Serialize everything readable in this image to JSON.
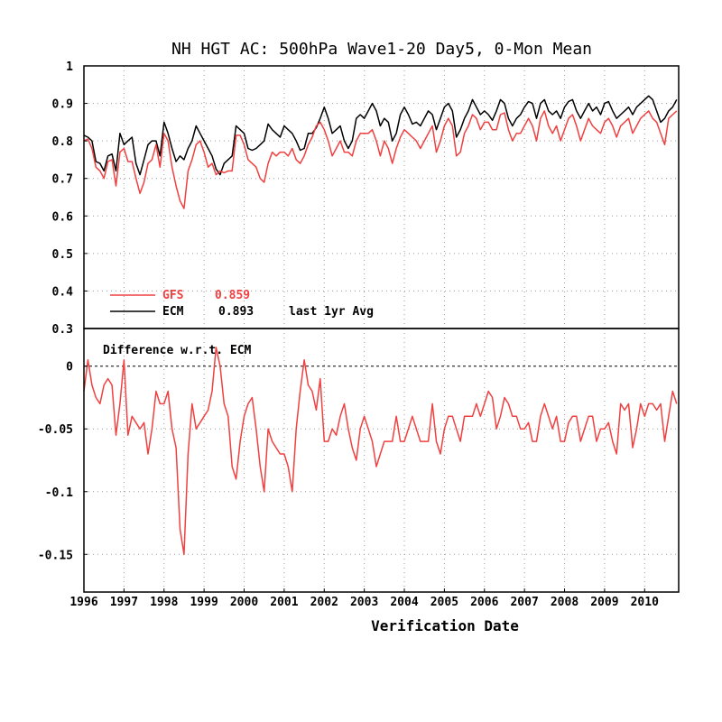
{
  "chart_data": [
    {
      "type": "line",
      "title": "NH HGT AC: 500hPa Wave1-20 Day5, 0-Mon Mean",
      "xlabel": "Verification Date",
      "xlim": [
        1996,
        2010.85
      ],
      "ylim": [
        0.3,
        1.0
      ],
      "yticks": [
        1,
        0.9,
        0.8,
        0.7,
        0.6,
        0.5,
        0.4,
        0.3
      ],
      "xticks": [
        "1996",
        "1997",
        "1998",
        "1999",
        "2000",
        "2001",
        "2002",
        "2003",
        "2004",
        "2005",
        "2006",
        "2007",
        "2008",
        "2009",
        "2010"
      ],
      "grid": true,
      "legend_position": "bottom-left",
      "legend": [
        {
          "name": "GFS",
          "value": "0.859",
          "color": "#f04040"
        },
        {
          "name": "ECM",
          "value": "0.893",
          "note": "last 1yr Avg",
          "color": "#000000"
        }
      ],
      "series": [
        {
          "name": "ECM",
          "color": "#000000",
          "x": [
            1996.0,
            1996.1,
            1996.2,
            1996.3,
            1996.4,
            1996.5,
            1996.6,
            1996.7,
            1996.8,
            1996.9,
            1997.0,
            1997.1,
            1997.2,
            1997.3,
            1997.4,
            1997.5,
            1997.6,
            1997.7,
            1997.8,
            1997.9,
            1998.0,
            1998.1,
            1998.2,
            1998.3,
            1998.4,
            1998.5,
            1998.6,
            1998.7,
            1998.8,
            1998.9,
            1999.0,
            1999.1,
            1999.2,
            1999.3,
            1999.4,
            1999.5,
            1999.6,
            1999.7,
            1999.8,
            1999.9,
            2000.0,
            2000.1,
            2000.2,
            2000.3,
            2000.4,
            2000.5,
            2000.6,
            2000.7,
            2000.8,
            2000.9,
            2001.0,
            2001.1,
            2001.2,
            2001.3,
            2001.4,
            2001.5,
            2001.6,
            2001.7,
            2001.8,
            2001.9,
            2002.0,
            2002.1,
            2002.2,
            2002.3,
            2002.4,
            2002.5,
            2002.6,
            2002.7,
            2002.8,
            2002.9,
            2003.0,
            2003.1,
            2003.2,
            2003.3,
            2003.4,
            2003.5,
            2003.6,
            2003.7,
            2003.8,
            2003.9,
            2004.0,
            2004.1,
            2004.2,
            2004.3,
            2004.4,
            2004.5,
            2004.6,
            2004.7,
            2004.8,
            2004.9,
            2005.0,
            2005.1,
            2005.2,
            2005.3,
            2005.4,
            2005.5,
            2005.6,
            2005.7,
            2005.8,
            2005.9,
            2006.0,
            2006.1,
            2006.2,
            2006.3,
            2006.4,
            2006.5,
            2006.6,
            2006.7,
            2006.8,
            2006.9,
            2007.0,
            2007.1,
            2007.2,
            2007.3,
            2007.4,
            2007.5,
            2007.6,
            2007.7,
            2007.8,
            2007.9,
            2008.0,
            2008.1,
            2008.2,
            2008.3,
            2008.4,
            2008.5,
            2008.6,
            2008.7,
            2008.8,
            2008.9,
            2009.0,
            2009.1,
            2009.2,
            2009.3,
            2009.4,
            2009.5,
            2009.6,
            2009.7,
            2009.8,
            2009.9,
            2010.0,
            2010.1,
            2010.2,
            2010.3,
            2010.4,
            2010.5,
            2010.6,
            2010.7,
            2010.8
          ],
          "values": [
            0.815,
            0.81,
            0.8,
            0.745,
            0.74,
            0.72,
            0.76,
            0.765,
            0.72,
            0.82,
            0.79,
            0.8,
            0.81,
            0.74,
            0.71,
            0.75,
            0.79,
            0.8,
            0.8,
            0.76,
            0.85,
            0.82,
            0.78,
            0.745,
            0.76,
            0.75,
            0.78,
            0.8,
            0.84,
            0.82,
            0.8,
            0.78,
            0.76,
            0.725,
            0.71,
            0.74,
            0.75,
            0.76,
            0.84,
            0.83,
            0.82,
            0.78,
            0.775,
            0.78,
            0.79,
            0.8,
            0.845,
            0.83,
            0.82,
            0.81,
            0.84,
            0.83,
            0.82,
            0.8,
            0.775,
            0.78,
            0.82,
            0.82,
            0.835,
            0.86,
            0.89,
            0.86,
            0.82,
            0.83,
            0.84,
            0.8,
            0.78,
            0.8,
            0.86,
            0.87,
            0.86,
            0.88,
            0.9,
            0.88,
            0.84,
            0.86,
            0.85,
            0.8,
            0.82,
            0.87,
            0.89,
            0.87,
            0.845,
            0.85,
            0.84,
            0.86,
            0.88,
            0.87,
            0.83,
            0.86,
            0.89,
            0.9,
            0.88,
            0.81,
            0.83,
            0.86,
            0.88,
            0.91,
            0.89,
            0.87,
            0.88,
            0.87,
            0.855,
            0.88,
            0.91,
            0.9,
            0.86,
            0.84,
            0.86,
            0.87,
            0.89,
            0.905,
            0.9,
            0.86,
            0.9,
            0.91,
            0.88,
            0.87,
            0.88,
            0.86,
            0.89,
            0.905,
            0.91,
            0.88,
            0.86,
            0.88,
            0.9,
            0.88,
            0.89,
            0.87,
            0.9,
            0.905,
            0.88,
            0.86,
            0.87,
            0.88,
            0.89,
            0.87,
            0.89,
            0.9,
            0.91,
            0.92,
            0.91,
            0.88,
            0.85,
            0.86,
            0.88,
            0.89,
            0.91
          ]
        },
        {
          "name": "GFS",
          "color": "#f04040",
          "x": [
            1996.0,
            1996.1,
            1996.2,
            1996.3,
            1996.4,
            1996.5,
            1996.6,
            1996.7,
            1996.8,
            1996.9,
            1997.0,
            1997.1,
            1997.2,
            1997.3,
            1997.4,
            1997.5,
            1997.6,
            1997.7,
            1997.8,
            1997.9,
            1998.0,
            1998.1,
            1998.2,
            1998.3,
            1998.4,
            1998.5,
            1998.6,
            1998.7,
            1998.8,
            1998.9,
            1999.0,
            1999.1,
            1999.2,
            1999.3,
            1999.4,
            1999.5,
            1999.6,
            1999.7,
            1999.8,
            1999.9,
            2000.0,
            2000.1,
            2000.2,
            2000.3,
            2000.4,
            2000.5,
            2000.6,
            2000.7,
            2000.8,
            2000.9,
            2001.0,
            2001.1,
            2001.2,
            2001.3,
            2001.4,
            2001.5,
            2001.6,
            2001.7,
            2001.8,
            2001.9,
            2002.0,
            2002.1,
            2002.2,
            2002.3,
            2002.4,
            2002.5,
            2002.6,
            2002.7,
            2002.8,
            2002.9,
            2003.0,
            2003.1,
            2003.2,
            2003.3,
            2003.4,
            2003.5,
            2003.6,
            2003.7,
            2003.8,
            2003.9,
            2004.0,
            2004.1,
            2004.2,
            2004.3,
            2004.4,
            2004.5,
            2004.6,
            2004.7,
            2004.8,
            2004.9,
            2005.0,
            2005.1,
            2005.2,
            2005.3,
            2005.4,
            2005.5,
            2005.6,
            2005.7,
            2005.8,
            2005.9,
            2006.0,
            2006.1,
            2006.2,
            2006.3,
            2006.4,
            2006.5,
            2006.6,
            2006.7,
            2006.8,
            2006.9,
            2007.0,
            2007.1,
            2007.2,
            2007.3,
            2007.4,
            2007.5,
            2007.6,
            2007.7,
            2007.8,
            2007.9,
            2008.0,
            2008.1,
            2008.2,
            2008.3,
            2008.4,
            2008.5,
            2008.6,
            2008.7,
            2008.8,
            2008.9,
            2009.0,
            2009.1,
            2009.2,
            2009.3,
            2009.4,
            2009.5,
            2009.6,
            2009.7,
            2009.8,
            2009.9,
            2010.0,
            2010.1,
            2010.2,
            2010.3,
            2010.4,
            2010.5,
            2010.6,
            2010.7,
            2010.8
          ],
          "values": [
            0.8,
            0.805,
            0.78,
            0.73,
            0.72,
            0.7,
            0.745,
            0.75,
            0.68,
            0.77,
            0.78,
            0.745,
            0.745,
            0.7,
            0.66,
            0.69,
            0.74,
            0.75,
            0.79,
            0.73,
            0.82,
            0.8,
            0.73,
            0.68,
            0.64,
            0.62,
            0.72,
            0.75,
            0.79,
            0.8,
            0.77,
            0.73,
            0.74,
            0.71,
            0.72,
            0.715,
            0.72,
            0.72,
            0.815,
            0.815,
            0.79,
            0.75,
            0.74,
            0.73,
            0.7,
            0.69,
            0.74,
            0.77,
            0.76,
            0.77,
            0.77,
            0.76,
            0.78,
            0.75,
            0.74,
            0.76,
            0.79,
            0.81,
            0.84,
            0.85,
            0.83,
            0.8,
            0.76,
            0.78,
            0.8,
            0.77,
            0.77,
            0.76,
            0.8,
            0.82,
            0.82,
            0.82,
            0.83,
            0.8,
            0.76,
            0.8,
            0.78,
            0.74,
            0.78,
            0.81,
            0.83,
            0.82,
            0.81,
            0.8,
            0.78,
            0.8,
            0.82,
            0.84,
            0.77,
            0.8,
            0.84,
            0.86,
            0.84,
            0.76,
            0.77,
            0.82,
            0.84,
            0.87,
            0.86,
            0.83,
            0.85,
            0.85,
            0.83,
            0.83,
            0.87,
            0.875,
            0.83,
            0.8,
            0.82,
            0.82,
            0.84,
            0.86,
            0.84,
            0.8,
            0.86,
            0.88,
            0.84,
            0.82,
            0.84,
            0.8,
            0.83,
            0.86,
            0.87,
            0.84,
            0.8,
            0.83,
            0.86,
            0.84,
            0.83,
            0.82,
            0.85,
            0.86,
            0.84,
            0.81,
            0.84,
            0.85,
            0.86,
            0.82,
            0.84,
            0.86,
            0.87,
            0.88,
            0.86,
            0.85,
            0.82,
            0.79,
            0.86,
            0.87,
            0.88
          ]
        }
      ]
    },
    {
      "type": "line",
      "title": "Difference w.r.t. ECM",
      "xlim": [
        1996,
        2010.85
      ],
      "ylim": [
        -0.18,
        0.03
      ],
      "yticks": [
        0,
        -0.05,
        -0.1,
        -0.15
      ],
      "reference_line": 0,
      "grid": true,
      "series": [
        {
          "color": "#f04040",
          "x": [
            1996.0,
            1996.1,
            1996.2,
            1996.3,
            1996.4,
            1996.5,
            1996.6,
            1996.7,
            1996.8,
            1996.9,
            1997.0,
            1997.1,
            1997.2,
            1997.3,
            1997.4,
            1997.5,
            1997.6,
            1997.7,
            1997.8,
            1997.9,
            1998.0,
            1998.1,
            1998.2,
            1998.3,
            1998.4,
            1998.5,
            1998.6,
            1998.7,
            1998.8,
            1998.9,
            1999.0,
            1999.1,
            1999.2,
            1999.3,
            1999.4,
            1999.5,
            1999.6,
            1999.7,
            1999.8,
            1999.9,
            2000.0,
            2000.1,
            2000.2,
            2000.3,
            2000.4,
            2000.5,
            2000.6,
            2000.7,
            2000.8,
            2000.9,
            2001.0,
            2001.1,
            2001.2,
            2001.3,
            2001.4,
            2001.5,
            2001.6,
            2001.7,
            2001.8,
            2001.9,
            2002.0,
            2002.1,
            2002.2,
            2002.3,
            2002.4,
            2002.5,
            2002.6,
            2002.7,
            2002.8,
            2002.9,
            2003.0,
            2003.1,
            2003.2,
            2003.3,
            2003.4,
            2003.5,
            2003.6,
            2003.7,
            2003.8,
            2003.9,
            2004.0,
            2004.1,
            2004.2,
            2004.3,
            2004.4,
            2004.5,
            2004.6,
            2004.7,
            2004.8,
            2004.9,
            2005.0,
            2005.1,
            2005.2,
            2005.3,
            2005.4,
            2005.5,
            2005.6,
            2005.7,
            2005.8,
            2005.9,
            2006.0,
            2006.1,
            2006.2,
            2006.3,
            2006.4,
            2006.5,
            2006.6,
            2006.7,
            2006.8,
            2006.9,
            2007.0,
            2007.1,
            2007.2,
            2007.3,
            2007.4,
            2007.5,
            2007.6,
            2007.7,
            2007.8,
            2007.9,
            2008.0,
            2008.1,
            2008.2,
            2008.3,
            2008.4,
            2008.5,
            2008.6,
            2008.7,
            2008.8,
            2008.9,
            2009.0,
            2009.1,
            2009.2,
            2009.3,
            2009.4,
            2009.5,
            2009.6,
            2009.7,
            2009.8,
            2009.9,
            2010.0,
            2010.1,
            2010.2,
            2010.3,
            2010.4,
            2010.5,
            2010.6,
            2010.7,
            2010.8
          ],
          "values": [
            -0.02,
            0.005,
            -0.015,
            -0.025,
            -0.03,
            -0.015,
            -0.01,
            -0.015,
            -0.055,
            -0.03,
            0.005,
            -0.055,
            -0.04,
            -0.045,
            -0.05,
            -0.045,
            -0.07,
            -0.05,
            -0.02,
            -0.03,
            -0.03,
            -0.02,
            -0.05,
            -0.065,
            -0.13,
            -0.15,
            -0.07,
            -0.03,
            -0.05,
            -0.045,
            -0.04,
            -0.035,
            -0.02,
            0.015,
            0.0,
            -0.03,
            -0.04,
            -0.08,
            -0.09,
            -0.06,
            -0.04,
            -0.03,
            -0.025,
            -0.05,
            -0.08,
            -0.1,
            -0.05,
            -0.06,
            -0.065,
            -0.07,
            -0.07,
            -0.08,
            -0.1,
            -0.05,
            -0.02,
            0.005,
            -0.015,
            -0.02,
            -0.035,
            -0.01,
            -0.06,
            -0.06,
            -0.05,
            -0.055,
            -0.04,
            -0.03,
            -0.05,
            -0.065,
            -0.075,
            -0.05,
            -0.04,
            -0.05,
            -0.06,
            -0.08,
            -0.07,
            -0.06,
            -0.06,
            -0.06,
            -0.04,
            -0.06,
            -0.06,
            -0.05,
            -0.04,
            -0.05,
            -0.06,
            -0.06,
            -0.06,
            -0.03,
            -0.06,
            -0.07,
            -0.05,
            -0.04,
            -0.04,
            -0.05,
            -0.06,
            -0.04,
            -0.04,
            -0.04,
            -0.03,
            -0.04,
            -0.03,
            -0.02,
            -0.025,
            -0.05,
            -0.04,
            -0.025,
            -0.03,
            -0.04,
            -0.04,
            -0.05,
            -0.05,
            -0.045,
            -0.06,
            -0.06,
            -0.04,
            -0.03,
            -0.04,
            -0.05,
            -0.04,
            -0.06,
            -0.06,
            -0.045,
            -0.04,
            -0.04,
            -0.06,
            -0.05,
            -0.04,
            -0.04,
            -0.06,
            -0.05,
            -0.05,
            -0.045,
            -0.06,
            -0.07,
            -0.03,
            -0.035,
            -0.03,
            -0.065,
            -0.05,
            -0.03,
            -0.04,
            -0.03,
            -0.03,
            -0.035,
            -0.03,
            -0.06,
            -0.04,
            -0.02,
            -0.03
          ]
        }
      ]
    }
  ]
}
